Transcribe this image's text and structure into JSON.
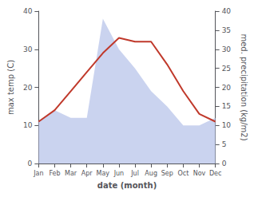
{
  "chart_data": {
    "type": "line",
    "categories": [
      "Jan",
      "Feb",
      "Mar",
      "Apr",
      "May",
      "Jun",
      "Jul",
      "Aug",
      "Sep",
      "Oct",
      "Nov",
      "Dec"
    ],
    "series": [
      {
        "type": "area",
        "color": "#b8c4ea",
        "axis": "y2",
        "values": [
          11,
          14,
          12,
          12,
          38,
          30,
          25,
          19,
          15,
          10,
          10,
          12
        ]
      },
      {
        "type": "line",
        "color": "#c0392b",
        "values": [
          11,
          14,
          19,
          24,
          29,
          33,
          32,
          32,
          26,
          19,
          13,
          11
        ]
      }
    ],
    "xlabel": "date (month)",
    "ylabel": "max temp (C)",
    "y2label": "med. precipitation (kg/m2)",
    "ylim": [
      0,
      40
    ],
    "yticks": [
      0,
      10,
      20,
      30,
      40
    ],
    "y2lim": [
      0,
      40
    ],
    "y2ticks": [
      0,
      5,
      10,
      15,
      20,
      25,
      30,
      35,
      40
    ],
    "grid": false
  }
}
